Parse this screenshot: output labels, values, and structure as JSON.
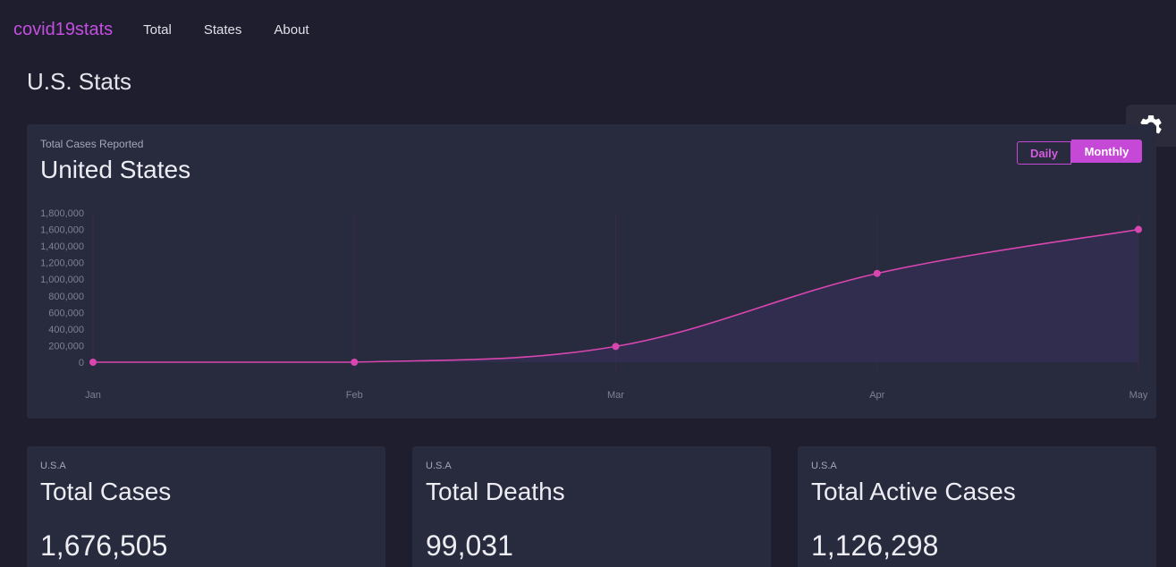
{
  "nav": {
    "brand": "covid19stats",
    "links": [
      "Total",
      "States",
      "About"
    ]
  },
  "page_title": "U.S. Stats",
  "settings": {
    "icon": "gear-icon"
  },
  "chart_card": {
    "subtitle": "Total Cases Reported",
    "title": "United States",
    "toggle": {
      "daily": "Daily",
      "monthly": "Monthly",
      "active": "Monthly"
    }
  },
  "chart_data": {
    "type": "area",
    "categories": [
      "Jan",
      "Feb",
      "Mar",
      "Apr",
      "May"
    ],
    "series": [
      {
        "values": [
          1,
          15,
          190000,
          1070000,
          1600000
        ]
      }
    ],
    "yticks": [
      "0",
      "200,000",
      "400,000",
      "600,000",
      "800,000",
      "1,000,000",
      "1,200,000",
      "1,400,000",
      "1,600,000",
      "1,800,000"
    ],
    "ylim": [
      0,
      1800000
    ],
    "colors": {
      "line": "#d946b0",
      "fill": "#35305a",
      "grid": "#3a2a44",
      "tick": "#7f8090"
    }
  },
  "stats": [
    {
      "region": "U.S.A",
      "label": "Total Cases",
      "value": "1,676,505"
    },
    {
      "region": "U.S.A",
      "label": "Total Deaths",
      "value": "99,031"
    },
    {
      "region": "U.S.A",
      "label": "Total Active Cases",
      "value": "1,126,298"
    }
  ]
}
